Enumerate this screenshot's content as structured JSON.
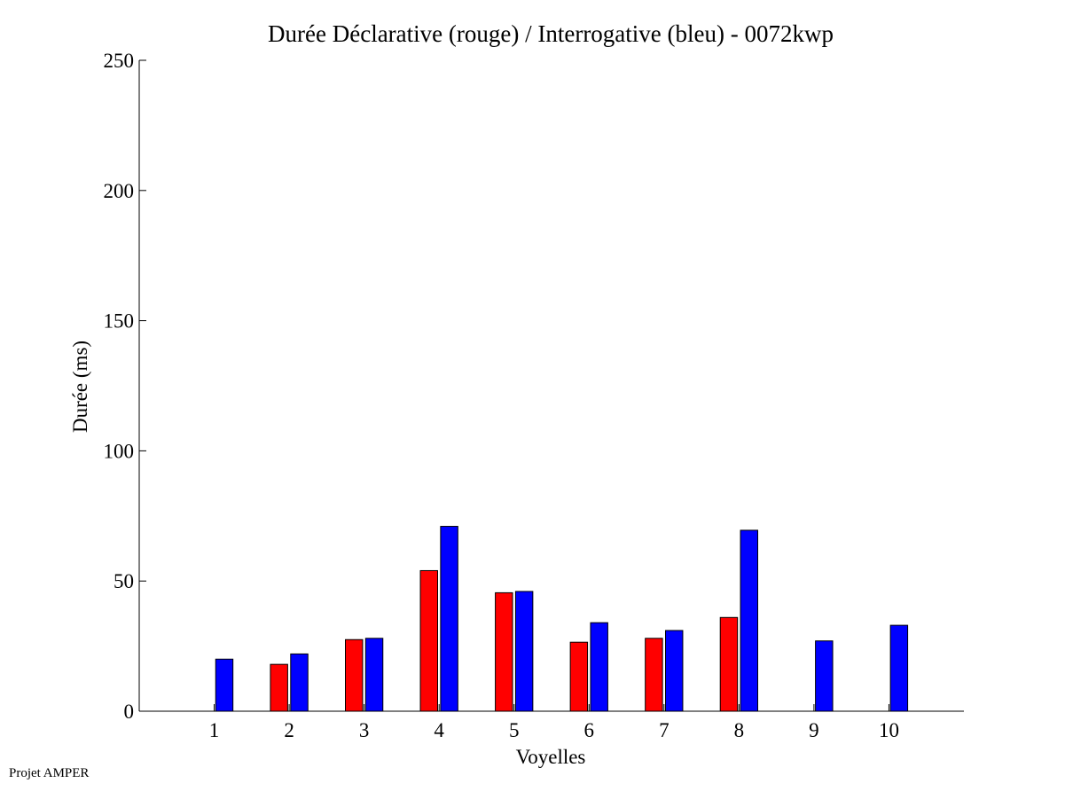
{
  "chart_data": {
    "type": "bar",
    "title": "Durée Déclarative (rouge) / Interrogative (bleu) - 0072kwp",
    "xlabel": "Voyelles",
    "ylabel": "Durée (ms)",
    "ylim": [
      0,
      250
    ],
    "yticks": [
      0,
      50,
      100,
      150,
      200,
      250
    ],
    "xlim": [
      0,
      11
    ],
    "categories": [
      "1",
      "2",
      "3",
      "4",
      "5",
      "6",
      "7",
      "8",
      "9",
      "10"
    ],
    "series": [
      {
        "color": "#ff0000",
        "values": [
          0,
          18,
          27.5,
          54,
          45.5,
          26.5,
          28,
          36,
          0,
          0
        ]
      },
      {
        "color": "#0000ff",
        "values": [
          20,
          22,
          28,
          71,
          46,
          34,
          31,
          69.5,
          27,
          33
        ]
      }
    ],
    "grid": false,
    "legend": "none"
  },
  "footer": {
    "note": "Projet AMPER"
  }
}
